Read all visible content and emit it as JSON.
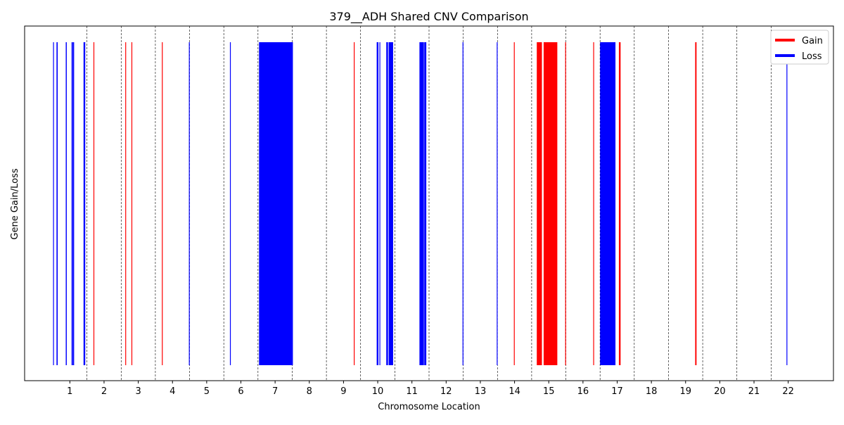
{
  "chart_data": {
    "type": "bar",
    "title": "379__ADH Shared CNV Comparison",
    "xlabel": "Chromosome Location",
    "ylabel": "Gene Gain/Loss",
    "grid": "vertical dashed lines at chromosome boundaries",
    "legend_position": "top-right",
    "legend": [
      {
        "label": "Gain",
        "color": "#ff0000"
      },
      {
        "label": "Loss",
        "color": "#0000ff"
      }
    ],
    "x_ticks": [
      {
        "label": "1",
        "x": 0.5
      },
      {
        "label": "2",
        "x": 1.5
      },
      {
        "label": "3",
        "x": 2.5
      },
      {
        "label": "4",
        "x": 3.5
      },
      {
        "label": "5",
        "x": 4.5
      },
      {
        "label": "6",
        "x": 5.5
      },
      {
        "label": "7",
        "x": 6.5
      },
      {
        "label": "8",
        "x": 7.5
      },
      {
        "label": "9",
        "x": 8.5
      },
      {
        "label": "10",
        "x": 9.5
      },
      {
        "label": "11",
        "x": 10.5
      },
      {
        "label": "12",
        "x": 11.5
      },
      {
        "label": "13",
        "x": 12.5
      },
      {
        "label": "14",
        "x": 13.5
      },
      {
        "label": "15",
        "x": 14.5
      },
      {
        "label": "16",
        "x": 15.5
      },
      {
        "label": "17",
        "x": 16.5
      },
      {
        "label": "18",
        "x": 17.5
      },
      {
        "label": "19",
        "x": 18.5
      },
      {
        "label": "20",
        "x": 19.5
      },
      {
        "label": "21",
        "x": 20.5
      },
      {
        "label": "22",
        "x": 21.5
      }
    ],
    "chromosome_boundaries": [
      {
        "chromosome": "1",
        "start": 0,
        "end": 1
      },
      {
        "chromosome": "2",
        "start": 1,
        "end": 2
      },
      {
        "chromosome": "3",
        "start": 2,
        "end": 3
      },
      {
        "chromosome": "4",
        "start": 3,
        "end": 4
      },
      {
        "chromosome": "5",
        "start": 4,
        "end": 5
      },
      {
        "chromosome": "6",
        "start": 5,
        "end": 6
      },
      {
        "chromosome": "7",
        "start": 6,
        "end": 7
      },
      {
        "chromosome": "8",
        "start": 7,
        "end": 8
      },
      {
        "chromosome": "9",
        "start": 8,
        "end": 9
      },
      {
        "chromosome": "10",
        "start": 9,
        "end": 10
      },
      {
        "chromosome": "11",
        "start": 10,
        "end": 11
      },
      {
        "chromosome": "12",
        "start": 11,
        "end": 12
      },
      {
        "chromosome": "13",
        "start": 12,
        "end": 13
      },
      {
        "chromosome": "14",
        "start": 13,
        "end": 14
      },
      {
        "chromosome": "15",
        "start": 14,
        "end": 15
      },
      {
        "chromosome": "16",
        "start": 15,
        "end": 16
      },
      {
        "chromosome": "17",
        "start": 16,
        "end": 17
      },
      {
        "chromosome": "18",
        "start": 17,
        "end": 18
      },
      {
        "chromosome": "19",
        "start": 18,
        "end": 19
      },
      {
        "chromosome": "20",
        "start": 19,
        "end": 20
      },
      {
        "chromosome": "21",
        "start": 20,
        "end": 21
      },
      {
        "chromosome": "22",
        "start": 21,
        "end": 22
      }
    ],
    "events": [
      {
        "type": "Loss",
        "start": 0.01,
        "end": 0.012
      },
      {
        "type": "Loss",
        "start": 0.11,
        "end": 0.112
      },
      {
        "type": "Loss",
        "start": 0.12,
        "end": 0.122
      },
      {
        "type": "Loss",
        "start": 0.38,
        "end": 0.41
      },
      {
        "type": "Loss",
        "start": 0.55,
        "end": 0.558
      },
      {
        "type": "Loss",
        "start": 0.58,
        "end": 0.588
      },
      {
        "type": "Loss",
        "start": 0.6,
        "end": 0.608
      },
      {
        "type": "Loss",
        "start": 0.9,
        "end": 0.95
      },
      {
        "type": "Gain",
        "start": 1.19,
        "end": 1.2
      },
      {
        "type": "Gain",
        "start": 2.12,
        "end": 2.13
      },
      {
        "type": "Gain",
        "start": 2.3,
        "end": 2.31
      },
      {
        "type": "Gain",
        "start": 3.19,
        "end": 3.2
      },
      {
        "type": "Loss",
        "start": 3.98,
        "end": 4.0
      },
      {
        "type": "Loss",
        "start": 5.18,
        "end": 5.2
      },
      {
        "type": "Loss",
        "start": 6.03,
        "end": 7.02
      },
      {
        "type": "Gain",
        "start": 8.8,
        "end": 8.81
      },
      {
        "type": "Loss",
        "start": 9.47,
        "end": 9.52
      },
      {
        "type": "Loss",
        "start": 9.55,
        "end": 9.57
      },
      {
        "type": "Loss",
        "start": 9.75,
        "end": 9.8
      },
      {
        "type": "Loss",
        "start": 9.82,
        "end": 9.95
      },
      {
        "type": "Loss",
        "start": 10.72,
        "end": 10.85
      },
      {
        "type": "Loss",
        "start": 10.86,
        "end": 10.92
      },
      {
        "type": "Loss",
        "start": 11.98,
        "end": 12.0
      },
      {
        "type": "Loss",
        "start": 12.98,
        "end": 13.0
      },
      {
        "type": "Gain",
        "start": 13.48,
        "end": 13.5
      },
      {
        "type": "Gain",
        "start": 14.15,
        "end": 14.3
      },
      {
        "type": "Gain",
        "start": 14.35,
        "end": 14.75
      },
      {
        "type": "Gain",
        "start": 14.98,
        "end": 15.0
      },
      {
        "type": "Gain",
        "start": 15.8,
        "end": 15.82
      },
      {
        "type": "Loss",
        "start": 16.0,
        "end": 16.45
      },
      {
        "type": "Gain",
        "start": 16.55,
        "end": 16.6
      },
      {
        "type": "Gain",
        "start": 18.78,
        "end": 18.82
      },
      {
        "type": "Loss",
        "start": 21.45,
        "end": 21.47
      }
    ]
  }
}
